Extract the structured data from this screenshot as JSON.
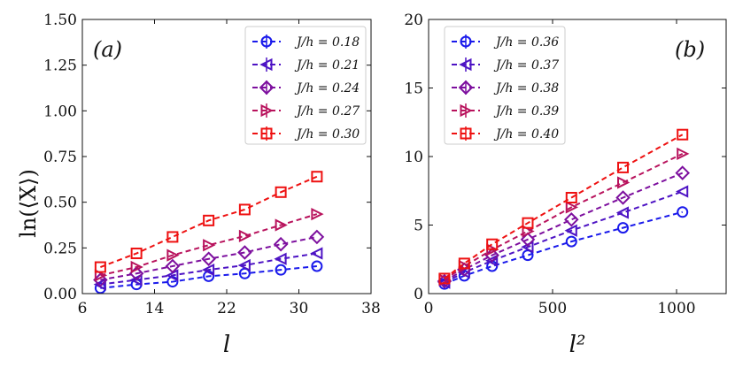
{
  "figure": {
    "y_label": "ln(⟨X⟩)"
  },
  "chart_data": [
    {
      "type": "line",
      "panel_label": "(a)",
      "xlabel": "l",
      "ylabel": "ln(⟨X⟩)",
      "xlim": [
        6,
        38
      ],
      "ylim": [
        0,
        1.5
      ],
      "xticks": [
        6,
        14,
        22,
        30,
        38
      ],
      "yticks": [
        0.0,
        0.25,
        0.5,
        0.75,
        1.0,
        1.25,
        1.5
      ],
      "xtick_labels": [
        "6",
        "14",
        "22",
        "30",
        "38"
      ],
      "ytick_labels": [
        "0.00",
        "0.25",
        "0.50",
        "0.75",
        "1.00",
        "1.25",
        "1.50"
      ],
      "legend_position": "top-right",
      "grid": false,
      "x": [
        8,
        12,
        16,
        20,
        24,
        28,
        32
      ],
      "series": [
        {
          "name": "J/h = 0.18",
          "marker": "circle",
          "color": "#1a1aeb",
          "values": [
            0.03,
            0.05,
            0.065,
            0.095,
            0.11,
            0.13,
            0.15
          ]
        },
        {
          "name": "J/h = 0.21",
          "marker": "triangle-left",
          "color": "#4d13c4",
          "values": [
            0.05,
            0.075,
            0.1,
            0.13,
            0.155,
            0.19,
            0.22
          ]
        },
        {
          "name": "J/h = 0.24",
          "marker": "diamond",
          "color": "#7d0f9e",
          "values": [
            0.075,
            0.11,
            0.15,
            0.19,
            0.225,
            0.27,
            0.31
          ]
        },
        {
          "name": "J/h = 0.27",
          "marker": "triangle-right",
          "color": "#b8125c",
          "values": [
            0.1,
            0.145,
            0.21,
            0.265,
            0.315,
            0.375,
            0.435
          ]
        },
        {
          "name": "J/h = 0.30",
          "marker": "square",
          "color": "#ee1111",
          "values": [
            0.145,
            0.22,
            0.31,
            0.4,
            0.46,
            0.555,
            0.64
          ]
        }
      ]
    },
    {
      "type": "line",
      "panel_label": "(b)",
      "xlabel": "l²",
      "ylabel": "",
      "xlim": [
        0,
        1200
      ],
      "ylim": [
        0,
        20
      ],
      "xticks": [
        0,
        500,
        1000
      ],
      "yticks": [
        0,
        5,
        10,
        15,
        20
      ],
      "xtick_labels": [
        "0",
        "500",
        "1000"
      ],
      "ytick_labels": [
        "0",
        "5",
        "10",
        "15",
        "20"
      ],
      "legend_position": "top-left",
      "grid": false,
      "x": [
        64,
        144,
        256,
        400,
        576,
        784,
        1024
      ],
      "series": [
        {
          "name": "J/h = 0.36",
          "marker": "circle",
          "color": "#1a1aeb",
          "values": [
            0.7,
            1.3,
            2.0,
            2.8,
            3.8,
            4.8,
            5.95
          ]
        },
        {
          "name": "J/h = 0.37",
          "marker": "triangle-left",
          "color": "#4d13c4",
          "values": [
            0.8,
            1.55,
            2.4,
            3.4,
            4.6,
            5.9,
            7.45
          ]
        },
        {
          "name": "J/h = 0.38",
          "marker": "diamond",
          "color": "#7d0f9e",
          "values": [
            0.9,
            1.75,
            2.8,
            3.95,
            5.4,
            7.0,
            8.8
          ]
        },
        {
          "name": "J/h = 0.39",
          "marker": "triangle-right",
          "color": "#b8125c",
          "values": [
            1.0,
            2.0,
            3.2,
            4.55,
            6.3,
            8.1,
            10.2
          ]
        },
        {
          "name": "J/h = 0.40",
          "marker": "square",
          "color": "#ee1111",
          "values": [
            1.1,
            2.2,
            3.6,
            5.15,
            7.0,
            9.2,
            11.6
          ]
        }
      ]
    }
  ]
}
